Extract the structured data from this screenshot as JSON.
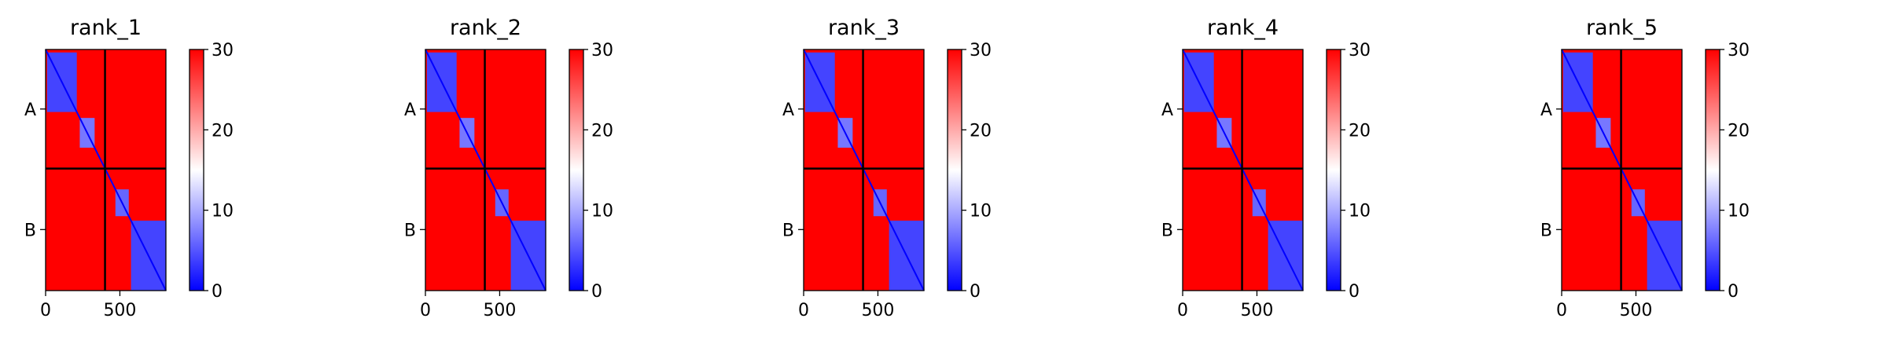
{
  "chart_data": {
    "type": "heatmap",
    "colormap": {
      "name": "bwr",
      "low_color": "#0000ff",
      "mid_color": "#ffffff",
      "high_color": "#ff0000",
      "vmin": 0,
      "vmax": 30,
      "ticks": [
        0,
        10,
        20,
        30
      ]
    },
    "xlim": [
      0,
      810
    ],
    "ylim": [
      810,
      0
    ],
    "x_ticks": [
      0,
      500
    ],
    "y_ticks": [
      {
        "position": 200,
        "label": "A"
      },
      {
        "position": 605,
        "label": "B"
      }
    ],
    "chain_boundary": 400,
    "boundary_color": "#000000",
    "panels": [
      {
        "title": "rank_1"
      },
      {
        "title": "rank_2"
      },
      {
        "title": "rank_3"
      },
      {
        "title": "rank_4"
      },
      {
        "title": "rank_5"
      }
    ],
    "domains": [
      {
        "range": [
          10,
          210
        ],
        "value": 4
      },
      {
        "range": [
          230,
          330
        ],
        "value": 7
      },
      {
        "range": [
          470,
          560
        ],
        "value": 6
      },
      {
        "range": [
          575,
          810
        ],
        "value": 4
      }
    ],
    "background_value": 30
  }
}
